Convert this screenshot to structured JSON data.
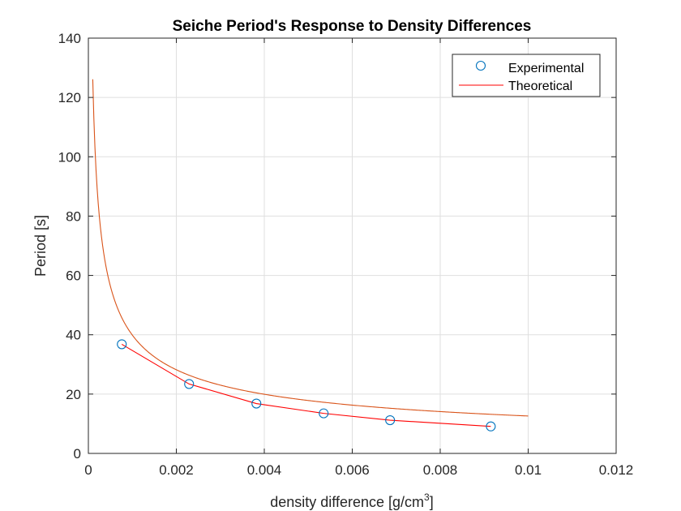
{
  "chart_data": {
    "type": "scatter",
    "title": "Seiche Period's Response to Density Differences",
    "xlabel": "density difference [g/cm",
    "xlabel_superscript": "3",
    "xlabel_suffix": "]",
    "ylabel": "Period [s]",
    "xlim": [
      0,
      0.012
    ],
    "ylim": [
      0,
      140
    ],
    "x_ticks": [
      0,
      0.002,
      0.004,
      0.006,
      0.008,
      0.01,
      0.012
    ],
    "x_tick_labels": [
      "0",
      "0.002",
      "0.004",
      "0.006",
      "0.008",
      "0.01",
      "0.012"
    ],
    "y_ticks": [
      0,
      20,
      40,
      60,
      80,
      100,
      120,
      140
    ],
    "y_tick_labels": [
      "0",
      "20",
      "40",
      "60",
      "80",
      "100",
      "120",
      "140"
    ],
    "grid": true,
    "legend_position": "top-right",
    "series": [
      {
        "name": "Experimental",
        "style": "markers-and-line",
        "marker": "circle",
        "marker_color": "#0072BD",
        "line_color": "#FF0000",
        "x": [
          0.00076,
          0.00229,
          0.00382,
          0.00535,
          0.00686,
          0.00915
        ],
        "y": [
          36.8,
          23.4,
          16.8,
          13.5,
          11.2,
          9.1
        ]
      },
      {
        "name": "Theoretical",
        "style": "line",
        "line_color": "#D95319",
        "formula": "y = 1.2612 / sqrt(x)",
        "x_range": [
          0.0001,
          0.01
        ]
      }
    ]
  }
}
